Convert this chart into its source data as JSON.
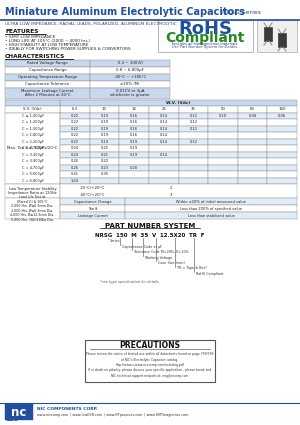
{
  "title_left": "Miniature Aluminum Electrolytic Capacitors",
  "title_right": "NRSG Series",
  "subtitle": "ULTRA LOW IMPEDANCE, RADIAL LEADS, POLARIZED, ALUMINUM ELECTROLYTIC",
  "features_title": "FEATURES",
  "features": [
    "• VERY LOW IMPEDANCE",
    "• LONG LIFE AT 105°C (2000 ~ 4000 hrs.)",
    "• HIGH STABILITY AT LOW TEMPERATURE",
    "• IDEALLY FOR SWITCHING POWER SUPPLIES & CONVERTORS"
  ],
  "rohs_line1": "RoHS",
  "rohs_line2": "Compliant",
  "rohs_line3": "Includes all homogeneous materials",
  "rohs_line4": "Use Part Number System for Details",
  "char_title": "CHARACTERISTICS",
  "char_rows": [
    [
      "Rated Voltage Range",
      "6.3 ~ 100(V)"
    ],
    [
      "Capacitance Range",
      "0.8 ~ 6,800μF"
    ],
    [
      "Operating Temperature Range",
      "-40°C ~ +105°C"
    ],
    [
      "Capacitance Tolerance",
      "±20% (M)"
    ],
    [
      "Maximum Leakage Current\nAfter 2 Minutes at 20°C",
      "0.01CV or 3μA\nwhichever is greater"
    ]
  ],
  "wv_values": [
    "6.3",
    "10",
    "16",
    "25",
    "35",
    "50",
    "63",
    "100"
  ],
  "vdc_values": [
    "8",
    "13",
    "20",
    "32",
    "44",
    "64",
    "79",
    "125"
  ],
  "tan_header": "Max. Tan δ at 120Hz/20°C",
  "cap_labels": [
    "C ≤ 1,000μF",
    "C = 1,200μF",
    "C = 1,500μF",
    "C = 1,800μF",
    "C = 2,200μF",
    "C = 2,700μF",
    "C = 3,300μF",
    "C = 3,900μF",
    "C = 4,700μF",
    "C = 5,600μF",
    "C = 6,800μF"
  ],
  "cap_vals": [
    [
      "0.22",
      "0.19",
      "0.16",
      "0.14",
      "0.12",
      "0.10",
      "0.08",
      "0.06"
    ],
    [
      "0.22",
      "0.19",
      "0.16",
      "0.14",
      "0.12",
      "",
      "",
      ""
    ],
    [
      "0.22",
      "0.19",
      "0.16",
      "0.14",
      "0.12",
      "",
      "",
      ""
    ],
    [
      "0.22",
      "0.19",
      "0.16",
      "0.14",
      "",
      "",
      "",
      ""
    ],
    [
      "0.22",
      "0.19",
      "0.19",
      "0.14",
      "0.12",
      "",
      "",
      ""
    ],
    [
      "0.24",
      "0.21",
      "0.19",
      "",
      "",
      "",
      "",
      ""
    ],
    [
      "0.24",
      "0.21",
      "0.19",
      "0.14",
      "",
      "",
      "",
      ""
    ],
    [
      "0.26",
      "0.22",
      "",
      "",
      "",
      "",
      "",
      ""
    ],
    [
      "0.26",
      "0.23",
      "0.20",
      "",
      "",
      "",
      "",
      ""
    ],
    [
      "0.41",
      "0.35",
      "",
      "",
      "",
      "",
      "",
      ""
    ],
    [
      "1.50",
      "",
      "",
      "",
      "",
      "",
      "",
      ""
    ]
  ],
  "low_temp_rows": [
    [
      "-25°C/+20°C",
      "2"
    ],
    [
      "-40°C/+20°C",
      "3"
    ]
  ],
  "load_life_lines": [
    "2,000 Hrs. Ø ≤ 6.3mm Dia.",
    "2,000 Hrs. Ø ≤ 6.3mm Dia.",
    "4,000 Hrs. Ø ≥ 12.5mm Dia.",
    "5,000 Hrs. 16Ω · 18Ωin Dia."
  ],
  "load_results": [
    [
      "Capacitance Change",
      "Within ±20% of initial measured value"
    ],
    [
      "Tan δ",
      "Less than 200% of specified value"
    ],
    [
      "*Leakage Current*",
      "Less than stabilized value"
    ]
  ],
  "part_number_title": "PART NUMBER SYSTEM",
  "part_example": "NRSG  150  M  35  V  12.5X20  TR  F",
  "part_labels": [
    [
      295,
      "F",
      "RoHS Compliant"
    ],
    [
      270,
      "TR",
      "TR = Tape & Box*"
    ],
    [
      245,
      "12.5X20",
      "Case Size (mm)"
    ],
    [
      215,
      "V",
      "Working Voltage"
    ],
    [
      185,
      "M",
      "Tolerance Code M=20%, K=10%"
    ],
    [
      155,
      "150",
      "Capacitance Code in μF"
    ],
    [
      125,
      "NRSG",
      "Series"
    ]
  ],
  "precautions_title": "PRECAUTIONS",
  "precautions_text1": "Please review the notice of limited use within all datasheets found on page 799/799",
  "precautions_text2": "of NIC's Electrolytic Capacitor catalog.",
  "precautions_text3": "http://www.s-www.ncccomp.com/ecatalog.pdf",
  "precautions_text4": "If in doubt on polarity, please discuss your specific application - please break and",
  "precautions_text5": "NIC technical support network at: eng@nccorp.com",
  "nc_text": "nc",
  "company_name": "NIC COMPONENTS CORP.",
  "website_items": [
    "www.niccomp.com",
    "www.lowESR.com",
    "www.RFpassives.com",
    "www.SMTmagnetics.com"
  ],
  "page_num": "128",
  "header_blue": "#1e4fa0",
  "table_blue_dark": "#c8d8ee",
  "table_blue_light": "#e0ecf8",
  "rohs_blue": "#1e4fa0",
  "rohs_green": "#228822",
  "border_color": "#888888",
  "text_dark": "#111111",
  "footer_blue_line": "#1e4fa0",
  "watermark_color": "#c8dff0"
}
